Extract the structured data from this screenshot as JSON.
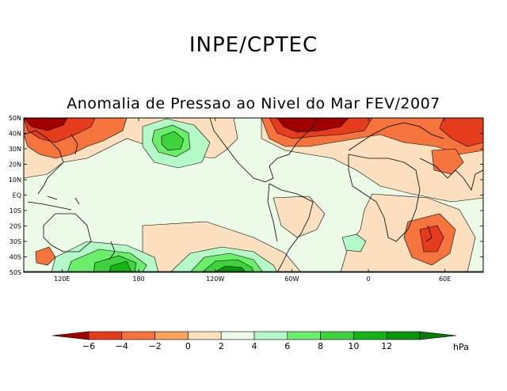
{
  "header": {
    "org": "INPE/CPTEC",
    "title": "Anomalia de Pressao ao Nivel do Mar FEV/2007"
  },
  "map": {
    "lat_labels": [
      "50N",
      "40N",
      "30N",
      "20N",
      "10N",
      "EQ",
      "10S",
      "20S",
      "30S",
      "40S",
      "50S"
    ],
    "lon_labels": [
      "120E",
      "180",
      "120W",
      "60W",
      "0",
      "60E"
    ],
    "lon_values": [
      120,
      180,
      240,
      300,
      360,
      420
    ],
    "lon_range": [
      90,
      450
    ],
    "lat_range": [
      -50,
      50
    ],
    "anomalies": [
      {
        "name": "north-pacific-west-low",
        "value": -6,
        "lon": 120,
        "lat": 47
      },
      {
        "name": "north-pacific-west-low-core",
        "value": -7,
        "lon": 118,
        "lat": 49
      },
      {
        "name": "japan-low",
        "value": -4,
        "lon": 115,
        "lat": 35
      },
      {
        "name": "north-central-pacific-high",
        "value": 4,
        "lon": 198,
        "lat": 37
      },
      {
        "name": "north-central-pacific-high-core",
        "value": 6,
        "lon": 197,
        "lat": 36
      },
      {
        "name": "north-atlantic-low",
        "value": -6,
        "lon": 340,
        "lat": 46
      },
      {
        "name": "europe-low",
        "value": -4,
        "lon": 390,
        "lat": 44
      },
      {
        "name": "siberia-low",
        "value": -4,
        "lon": 440,
        "lat": 45
      },
      {
        "name": "arabia-low",
        "value": -2,
        "lon": 438,
        "lat": 20
      },
      {
        "name": "southwest-pacific-high",
        "value": 6,
        "lon": 152,
        "lat": -44
      },
      {
        "name": "southwest-pacific-high-core",
        "value": 8,
        "lon": 155,
        "lat": -47
      },
      {
        "name": "south-east-pacific-high",
        "value": 8,
        "lon": 240,
        "lat": -47
      },
      {
        "name": "south-east-pacific-high-core",
        "value": 10,
        "lon": 242,
        "lat": -49
      },
      {
        "name": "south-indian-low",
        "value": -4,
        "lon": 410,
        "lat": -32
      },
      {
        "name": "south-atlantic-high",
        "value": 2,
        "lon": 343,
        "lat": -33
      }
    ]
  },
  "colorbar": {
    "labels": [
      "−6",
      "−4",
      "−2",
      "0",
      "2",
      "4",
      "6",
      "8",
      "10",
      "12"
    ],
    "unit": "hPa",
    "colors": [
      "#a00000",
      "#e63c1e",
      "#f5733c",
      "#fba35a",
      "#fde0bf",
      "#ebfbe8",
      "#b6f9c8",
      "#6cee6c",
      "#3ed23e",
      "#14b414",
      "#0a960a",
      "#0a780a"
    ]
  },
  "colors": {
    "background": "#ebfbe8",
    "coast": "#000000"
  }
}
